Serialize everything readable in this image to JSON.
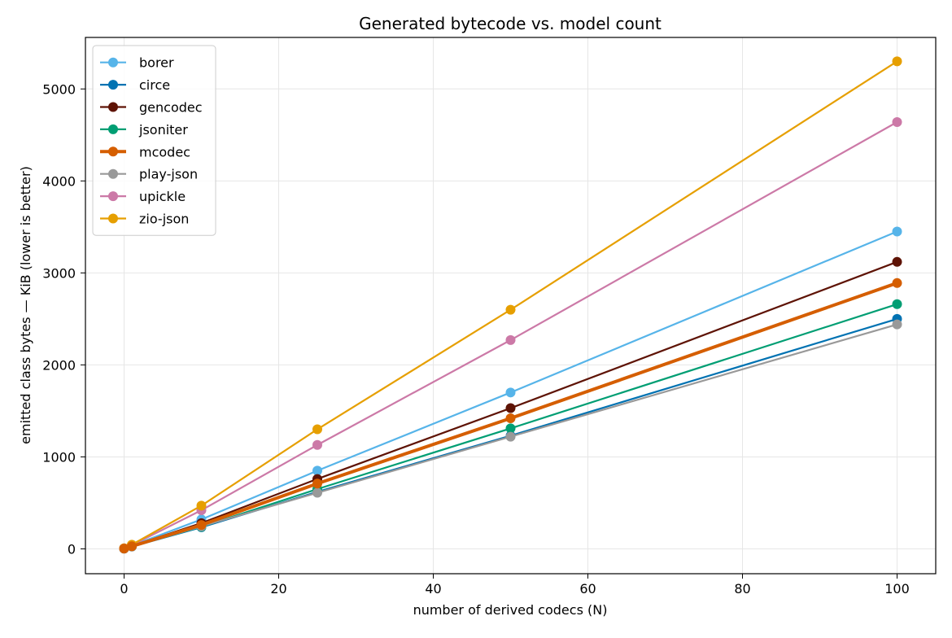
{
  "chart_data": {
    "type": "line",
    "title": "Generated bytecode vs. model count",
    "xlabel": "number of derived codecs (N)",
    "ylabel": "emitted class bytes — KiB (lower is better)",
    "x": [
      0,
      1,
      10,
      25,
      50,
      100
    ],
    "xlim": [
      -5,
      105
    ],
    "ylim": [
      -270,
      5560
    ],
    "xticks": [
      0,
      20,
      40,
      60,
      80,
      100
    ],
    "yticks": [
      0,
      1000,
      2000,
      3000,
      4000,
      5000
    ],
    "xtick_labels": [
      "0",
      "20",
      "40",
      "60",
      "80",
      "100"
    ],
    "ytick_labels": [
      "0",
      "1000",
      "2000",
      "3000",
      "4000",
      "5000"
    ],
    "grid": true,
    "legend_position": "top-left",
    "series": [
      {
        "name": "borer",
        "color": "#56b4e9",
        "values": [
          5,
          35,
          320,
          850,
          1700,
          3450
        ]
      },
      {
        "name": "circe",
        "color": "#0072b2",
        "values": [
          3,
          25,
          235,
          620,
          1230,
          2500
        ]
      },
      {
        "name": "gencodec",
        "color": "#5e1305",
        "values": [
          4,
          30,
          280,
          760,
          1530,
          3120
        ]
      },
      {
        "name": "jsoniter",
        "color": "#009e73",
        "values": [
          3,
          27,
          240,
          650,
          1310,
          2660
        ]
      },
      {
        "name": "mcodec",
        "color": "#d55e00",
        "emphasized": true,
        "values": [
          3,
          28,
          260,
          710,
          1420,
          2890
        ]
      },
      {
        "name": "play-json",
        "color": "#999999",
        "values": [
          3,
          25,
          245,
          610,
          1220,
          2440
        ]
      },
      {
        "name": "upickle",
        "color": "#cc79a7",
        "values": [
          5,
          40,
          420,
          1130,
          2270,
          4640
        ]
      },
      {
        "name": "zio-json",
        "color": "#e69f00",
        "values": [
          6,
          45,
          470,
          1300,
          2600,
          5300
        ]
      }
    ]
  }
}
